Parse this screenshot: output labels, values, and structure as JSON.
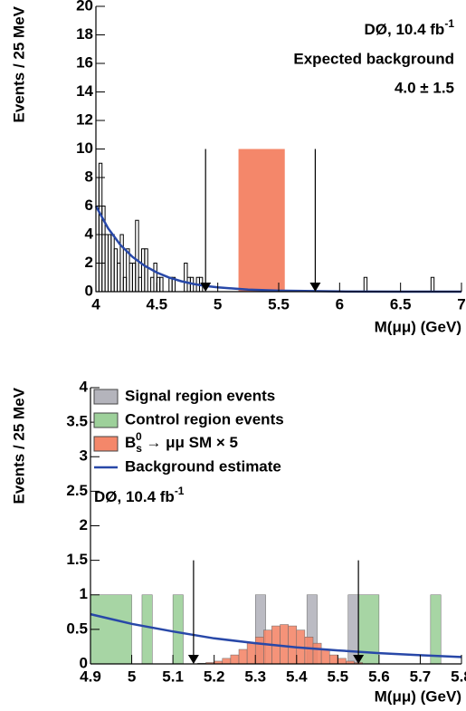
{
  "chart_data": [
    {
      "type": "histogram",
      "xlabel": "M(μμ) (GeV)",
      "ylabel": "Events / 25 MeV",
      "xlim": [
        4,
        7
      ],
      "xticks": [
        4,
        4.5,
        5,
        5.5,
        6,
        6.5,
        7
      ],
      "ylim": [
        0,
        20
      ],
      "yticks": [
        0,
        2,
        4,
        6,
        8,
        10,
        12,
        14,
        16,
        18,
        20
      ],
      "annotations": [
        {
          "text": "DØ, 10.4 fb",
          "sup": "-1"
        },
        "Expected background",
        "4.0 ± 1.5"
      ],
      "band": {
        "xmin": 5.17,
        "xmax": 5.55,
        "height": 10,
        "color": "#f4876a"
      },
      "arrows": [
        {
          "x": 4.9,
          "from": 10,
          "to": 0
        },
        {
          "x": 5.8,
          "from": 10,
          "to": 0
        }
      ],
      "series": [
        {
          "kind": "hist",
          "color": "#000000",
          "fill": false,
          "bins": [
            4.0,
            4.025,
            4.05,
            4.075,
            4.1,
            4.125,
            4.15,
            4.175,
            4.2,
            4.225,
            4.25,
            4.275,
            4.3,
            4.325,
            4.35,
            4.375,
            4.4,
            4.425,
            4.45,
            4.475,
            4.5,
            4.525,
            4.55,
            4.575,
            4.6,
            4.625,
            4.65,
            4.675,
            4.7,
            4.725,
            4.75,
            4.775,
            4.8,
            4.825,
            4.85,
            4.875,
            4.9,
            6.2,
            6.225,
            6.75,
            6.775,
            7.0
          ],
          "values": [
            8,
            9,
            6,
            4,
            4,
            4,
            3,
            2,
            4,
            1,
            3,
            2,
            2,
            5,
            1,
            3,
            3,
            0,
            1,
            2,
            1,
            1,
            0,
            0,
            1,
            1,
            0,
            0,
            0,
            2,
            1,
            1,
            0,
            1,
            1,
            0,
            0,
            1,
            0,
            1,
            0
          ]
        },
        {
          "kind": "line",
          "color": "#2848a8",
          "x": [
            4.0,
            4.1,
            4.2,
            4.3,
            4.4,
            4.5,
            4.6,
            4.7,
            4.8,
            4.9,
            5.0,
            5.25,
            5.5,
            6.0,
            6.5,
            7.0
          ],
          "values": [
            6,
            4.44,
            3.29,
            2.44,
            1.81,
            1.34,
            0.99,
            0.73,
            0.54,
            0.4,
            0.3,
            0.14,
            0.07,
            0.015,
            0.003,
            0.001
          ]
        }
      ]
    },
    {
      "type": "histogram",
      "xlabel": "M(μμ) (GeV)",
      "ylabel": "Events / 25 MeV",
      "xlim": [
        4.9,
        5.8
      ],
      "xticks": [
        4.9,
        5,
        5.1,
        5.2,
        5.3,
        5.4,
        5.5,
        5.6,
        5.7,
        5.8
      ],
      "ylim": [
        0,
        4
      ],
      "yticks": [
        0,
        0.5,
        1,
        1.5,
        2,
        2.5,
        3,
        3.5,
        4
      ],
      "annotations": [
        {
          "text": "DØ, 10.4 fb",
          "sup": "-1"
        }
      ],
      "arrows": [
        {
          "x": 5.15,
          "from": 1.5,
          "to": 0
        },
        {
          "x": 5.55,
          "from": 1.5,
          "to": 0
        }
      ],
      "series": [
        {
          "kind": "hist",
          "name": "Signal region events",
          "color": "#b4b4bc",
          "fill": true,
          "bins": [
            5.3,
            5.325,
            5.425,
            5.45,
            5.525,
            5.55
          ],
          "values": [
            1,
            0,
            1,
            0,
            1
          ]
        },
        {
          "kind": "hist",
          "name": "Control region events",
          "color": "#9dd09a",
          "fill": true,
          "bins": [
            4.9,
            5.0,
            5.025,
            5.05,
            5.1,
            5.125,
            5.55,
            5.6,
            5.725,
            5.75
          ],
          "values": [
            1,
            0,
            1,
            0,
            1,
            0,
            1,
            0,
            1
          ]
        },
        {
          "kind": "hist",
          "name": {
            "text": "B",
            "sub": "s",
            "sup": "0",
            "after": " → μμ SM × 5"
          },
          "color": "#f4876a",
          "fill": true,
          "bins": [
            5.16,
            5.18,
            5.2,
            5.22,
            5.24,
            5.26,
            5.28,
            5.3,
            5.32,
            5.34,
            5.36,
            5.38,
            5.4,
            5.42,
            5.44,
            5.46,
            5.48,
            5.5,
            5.52,
            5.54,
            5.56
          ],
          "values": [
            0.01,
            0.02,
            0.04,
            0.08,
            0.13,
            0.21,
            0.3,
            0.39,
            0.49,
            0.55,
            0.57,
            0.55,
            0.49,
            0.39,
            0.3,
            0.21,
            0.13,
            0.08,
            0.04,
            0.02
          ]
        },
        {
          "kind": "line",
          "name": "Background estimate",
          "color": "#2848a8",
          "x": [
            4.9,
            5.0,
            5.1,
            5.2,
            5.3,
            5.4,
            5.5,
            5.6,
            5.7,
            5.8
          ],
          "values": [
            0.72,
            0.58,
            0.47,
            0.37,
            0.3,
            0.24,
            0.195,
            0.156,
            0.126,
            0.1
          ]
        }
      ]
    }
  ]
}
